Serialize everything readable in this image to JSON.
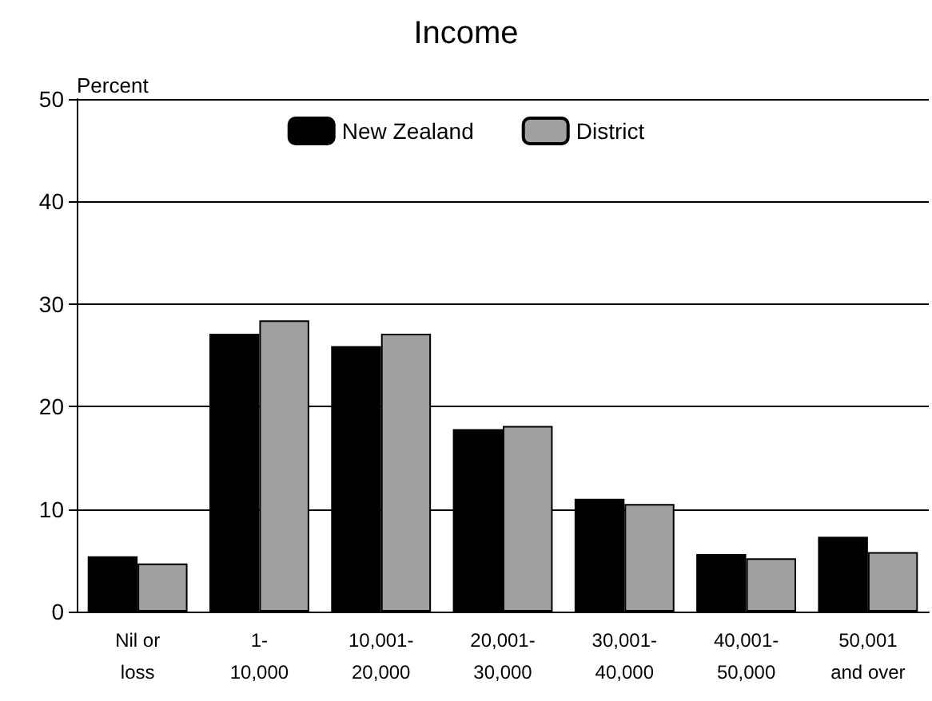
{
  "chart_data": {
    "type": "bar",
    "title": "Income",
    "ylabel": "Percent",
    "categories": [
      "Nil or\nloss",
      "1-\n10,000",
      "10,001-\n20,000",
      "20,001-\n30,000",
      "30,001-\n40,000",
      "40,001-\n50,000",
      "50,001\nand over"
    ],
    "series": [
      {
        "name": "New Zealand",
        "color": "#000000",
        "values": [
          5.4,
          27.1,
          25.9,
          17.8,
          11.0,
          5.6,
          7.3
        ]
      },
      {
        "name": "District",
        "color": "#a0a0a0",
        "values": [
          4.7,
          28.4,
          27.1,
          18.1,
          10.5,
          5.2,
          5.8
        ]
      }
    ],
    "ylim": [
      0,
      50
    ],
    "yticks": [
      0,
      10,
      20,
      30,
      40,
      50
    ],
    "grid": "y",
    "legend": "top"
  }
}
